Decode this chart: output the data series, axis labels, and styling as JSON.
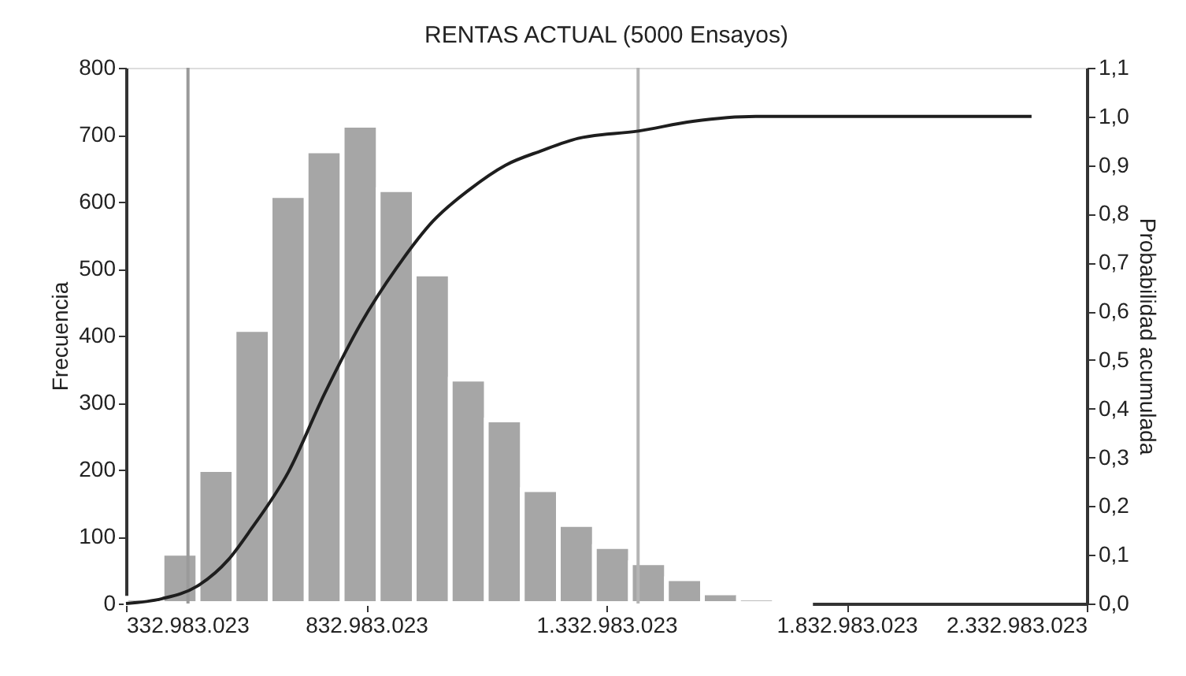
{
  "chart_data": {
    "type": "histogram",
    "title": "RENTAS ACTUAL (5000 Ensayos)",
    "ylabel": "Frecuencia",
    "y2label": "Probabilidad acumulada",
    "bins": [
      332983023,
      407983023,
      482983023,
      557983023,
      632983023,
      707983023,
      782983023,
      857983023,
      932983023,
      1007983023,
      1082983023,
      1157983023,
      1232983023,
      1307983023,
      1382983023,
      1457983023,
      1532983023,
      1607983023,
      1682983023,
      1757983023
    ],
    "values": [
      8,
      75,
      200,
      409,
      609,
      676,
      714,
      618,
      492,
      335,
      274,
      170,
      118,
      85,
      61,
      37,
      16,
      8,
      3
    ],
    "color": "#a6a6a6",
    "series": [
      {
        "type": "line",
        "axis": "y2",
        "color": "#1e1e1e",
        "x": [
          332983023,
          408000000,
          480000000,
          546000000,
          595000000,
          671000000,
          746000000,
          822000000,
          897000000,
          972000000,
          1048000000,
          1123000000,
          1199000000,
          1274000000,
          1399000000,
          1513000000,
          1644000000,
          2218000000
        ],
        "values": [
          0.0,
          0.01,
          0.035,
          0.09,
          0.155,
          0.27,
          0.43,
          0.575,
          0.69,
          0.785,
          0.85,
          0.9,
          0.93,
          0.955,
          0.97,
          0.99,
          1.0,
          1.0
        ]
      }
    ],
    "xlim": [
      332983023,
      2332983023
    ],
    "xticks": [
      {
        "value": 332983023,
        "label": "332.983.023"
      },
      {
        "value": 832983023,
        "label": "832.983.023"
      },
      {
        "value": 1332983023,
        "label": "1.332.983.023"
      },
      {
        "value": 1832983023,
        "label": "1.832.983.023"
      },
      {
        "value": 2332983023,
        "label": "2.332.983.023"
      }
    ],
    "ylim": [
      0,
      800
    ],
    "yticks": [
      0,
      100,
      200,
      300,
      400,
      500,
      600,
      700,
      800
    ],
    "y2lim": [
      0,
      1.1
    ],
    "y2ticks": [
      {
        "value": 0,
        "label": "0,0"
      },
      {
        "value": 0.1,
        "label": "0,1"
      },
      {
        "value": 0.2,
        "label": "0,2"
      },
      {
        "value": 0.3,
        "label": "0,3"
      },
      {
        "value": 0.4,
        "label": "0,4"
      },
      {
        "value": 0.5,
        "label": "0,5"
      },
      {
        "value": 0.6,
        "label": "0,6"
      },
      {
        "value": 0.7,
        "label": "0,7"
      },
      {
        "value": 0.8,
        "label": "0,8"
      },
      {
        "value": 0.9,
        "label": "0,9"
      },
      {
        "value": 1.0,
        "label": "1,0"
      },
      {
        "value": 1.1,
        "label": "1,1"
      }
    ],
    "ref_lines": [
      {
        "axis": "x",
        "value": 462000000,
        "color": "#9a9a9a"
      },
      {
        "axis": "x",
        "value": 1399000000,
        "color": "#b4b4b4"
      }
    ],
    "grid": false
  }
}
